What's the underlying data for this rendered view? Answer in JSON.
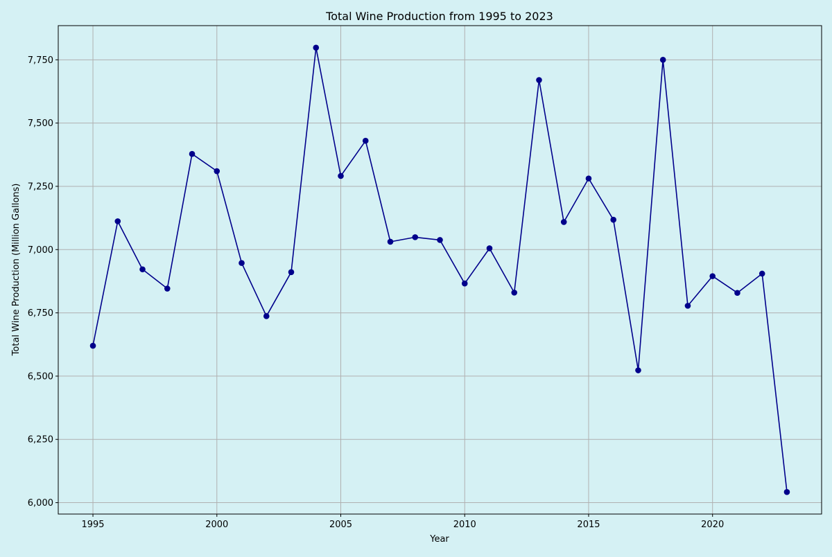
{
  "chart_data": {
    "type": "line",
    "title": "Total Wine Production from 1995 to 2023",
    "xlabel": "Year",
    "ylabel": "Total Wine Production (Million Gallons)",
    "xlim": [
      1993.6,
      2024.4
    ],
    "ylim": [
      5955,
      7885
    ],
    "x_ticks": [
      1995,
      2000,
      2005,
      2010,
      2015,
      2020
    ],
    "y_ticks": [
      6000,
      6250,
      6500,
      6750,
      7000,
      7250,
      7500,
      7750
    ],
    "x_tick_labels": [
      "1995",
      "2000",
      "2005",
      "2010",
      "2015",
      "2020"
    ],
    "y_tick_labels": [
      "6,000",
      "6,250",
      "6,500",
      "6,750",
      "7,000",
      "7,250",
      "7,500",
      "7,750"
    ],
    "grid": true,
    "colors": {
      "background": "#d5f1f4",
      "line": "#00008b",
      "grid": "#b0b0b0"
    },
    "series": [
      {
        "x": [
          1995,
          1996,
          1997,
          1998,
          1999,
          2000,
          2001,
          2002,
          2003,
          2004,
          2005,
          2006,
          2007,
          2008,
          2009,
          2010,
          2011,
          2012,
          2013,
          2014,
          2015,
          2016,
          2017,
          2018,
          2019,
          2020,
          2021,
          2022,
          2023
        ],
        "values": [
          6620,
          7112,
          6922,
          6846,
          7378,
          7310,
          6947,
          6737,
          6911,
          7798,
          7291,
          7430,
          7031,
          7049,
          7038,
          6866,
          7005,
          6830,
          7670,
          7109,
          7281,
          7118,
          6523,
          7750,
          6778,
          6895,
          6829,
          6905,
          6042
        ]
      }
    ]
  }
}
